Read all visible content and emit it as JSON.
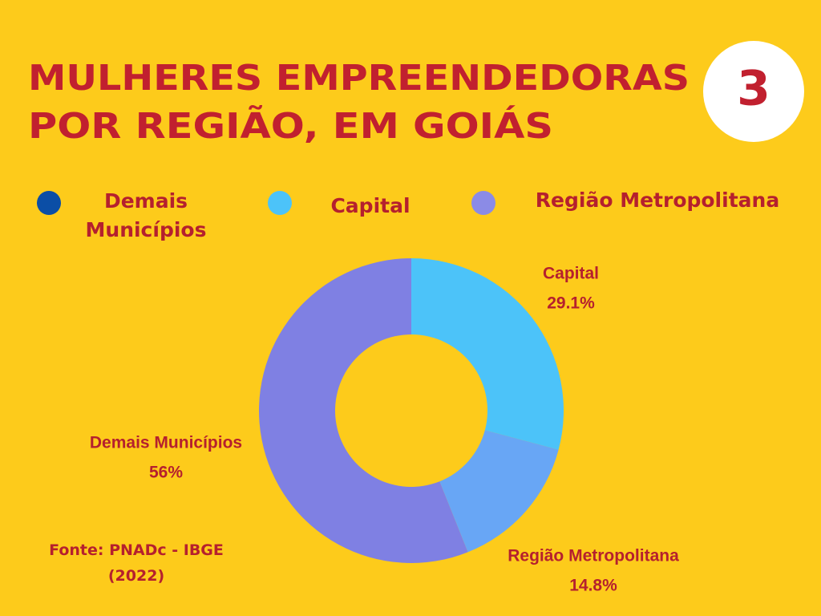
{
  "chart_data": {
    "type": "donut",
    "title": [
      "MULHERES EMPREENDEDORAS",
      "POR REGIÃO, EM GOIÁS"
    ],
    "badge": "3",
    "categories": [
      "Capital",
      "Região Metropolitana",
      "Demais Municípios"
    ],
    "values": [
      29.1,
      14.8,
      56
    ],
    "value_labels": [
      "29.1%",
      "14.8%",
      "56%"
    ],
    "colors": [
      "#4cc3f9",
      "#68a6f5",
      "#7f80e3"
    ],
    "legend_items": [
      {
        "name": "Demais Municípios",
        "color": "#0b4ea6"
      },
      {
        "name": "Capital",
        "color": "#4cc3f9"
      },
      {
        "name": "Região Metropolitana",
        "color": "#8b8be6"
      }
    ],
    "source": "Fonte: PNADc - IBGE (2022)"
  }
}
